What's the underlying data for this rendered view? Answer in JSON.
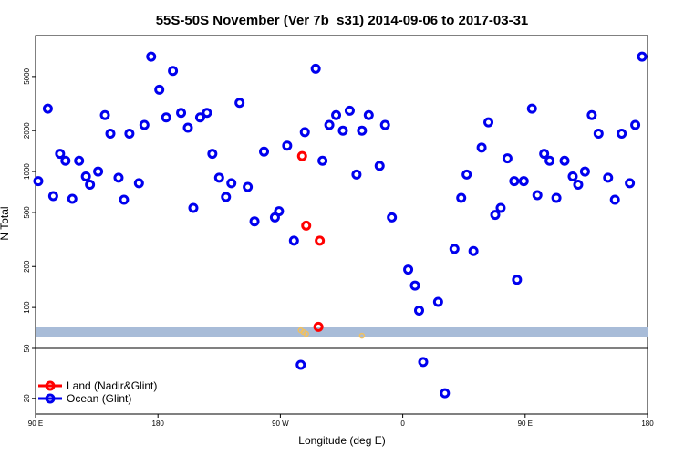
{
  "chart_data": {
    "type": "scatter",
    "title": "55S-50S November (Ver 7b_s31)   2014-09-06 to 2017-03-31",
    "xlabel": "Longitude (deg E)",
    "ylabel": "N Total",
    "x_ticks": [
      {
        "lon": 90,
        "label": "90 E"
      },
      {
        "lon": 180,
        "label": "180"
      },
      {
        "lon": 270,
        "label": "90 W"
      },
      {
        "lon": 360,
        "label": "0"
      },
      {
        "lon": 450,
        "label": "90 E"
      },
      {
        "lon": 540,
        "label": "180"
      }
    ],
    "y_ticks_main": [
      100,
      200,
      500,
      1000,
      2000,
      5000
    ],
    "y_ticks_lower": [
      20,
      50
    ],
    "y_scale": "log",
    "xlim": [
      90,
      540
    ],
    "ylim_main": [
      50,
      10000
    ],
    "ylim_lower": [
      15,
      50
    ],
    "colors": {
      "land": "#ff0000",
      "ocean": "#0000ee",
      "band": "#a8bcd8",
      "band_points": "#f0c060"
    },
    "legend": {
      "position": "bottom-left",
      "land_label": "Land (Nadir&Glint)",
      "ocean_label": "Ocean (Glint)"
    },
    "series": [
      {
        "name": "Land (Nadir&Glint)",
        "color": "#ff0000",
        "points": [
          [
            286,
            1300
          ],
          [
            289,
            400
          ],
          [
            299,
            310
          ],
          [
            298,
            72
          ]
        ]
      },
      {
        "name": "Ocean (Glint)",
        "color": "#0000ee",
        "points": [
          [
            92,
            850
          ],
          [
            99,
            2900
          ],
          [
            103,
            660
          ],
          [
            108,
            1350
          ],
          [
            112,
            1200
          ],
          [
            117,
            630
          ],
          [
            122,
            1200
          ],
          [
            127,
            920
          ],
          [
            130,
            800
          ],
          [
            136,
            1000
          ],
          [
            141,
            2600
          ],
          [
            145,
            1900
          ],
          [
            151,
            900
          ],
          [
            155,
            620
          ],
          [
            159,
            1900
          ],
          [
            166,
            820
          ],
          [
            170,
            2200
          ],
          [
            175,
            7000
          ],
          [
            181,
            4000
          ],
          [
            186,
            2500
          ],
          [
            191,
            5500
          ],
          [
            197,
            2700
          ],
          [
            202,
            2100
          ],
          [
            206,
            540
          ],
          [
            211,
            2500
          ],
          [
            216,
            2700
          ],
          [
            220,
            1350
          ],
          [
            225,
            900
          ],
          [
            230,
            650
          ],
          [
            234,
            820
          ],
          [
            240,
            3200
          ],
          [
            246,
            770
          ],
          [
            251,
            430
          ],
          [
            258,
            1400
          ],
          [
            266,
            460
          ],
          [
            269,
            510
          ],
          [
            275,
            1550
          ],
          [
            280,
            310
          ],
          [
            288,
            1950
          ],
          [
            296,
            5700
          ],
          [
            301,
            1200
          ],
          [
            306,
            2200
          ],
          [
            311,
            2600
          ],
          [
            316,
            2000
          ],
          [
            321,
            2800
          ],
          [
            326,
            950
          ],
          [
            330,
            2000
          ],
          [
            335,
            2600
          ],
          [
            343,
            1100
          ],
          [
            347,
            2200
          ],
          [
            352,
            460
          ],
          [
            364,
            190
          ],
          [
            369,
            145
          ],
          [
            372,
            95
          ],
          [
            386,
            110
          ],
          [
            398,
            270
          ],
          [
            403,
            640
          ],
          [
            407,
            950
          ],
          [
            412,
            260
          ],
          [
            418,
            1500
          ],
          [
            423,
            2300
          ],
          [
            428,
            480
          ],
          [
            432,
            540
          ],
          [
            437,
            1250
          ],
          [
            442,
            850
          ],
          [
            444,
            160
          ],
          [
            449,
            850
          ],
          [
            455,
            2900
          ],
          [
            459,
            670
          ],
          [
            464,
            1350
          ],
          [
            468,
            1200
          ],
          [
            473,
            640
          ],
          [
            479,
            1200
          ],
          [
            485,
            920
          ],
          [
            489,
            800
          ],
          [
            494,
            1000
          ],
          [
            499,
            2600
          ],
          [
            504,
            1900
          ],
          [
            511,
            900
          ],
          [
            516,
            620
          ],
          [
            521,
            1900
          ],
          [
            527,
            820
          ],
          [
            531,
            2200
          ],
          [
            536,
            7000
          ],
          [
            285,
            37
          ],
          [
            375,
            39
          ],
          [
            391,
            22
          ]
        ]
      }
    ],
    "band_points": [
      [
        285,
        68
      ],
      [
        287,
        66
      ],
      [
        289,
        64
      ],
      [
        330,
        62
      ]
    ]
  }
}
